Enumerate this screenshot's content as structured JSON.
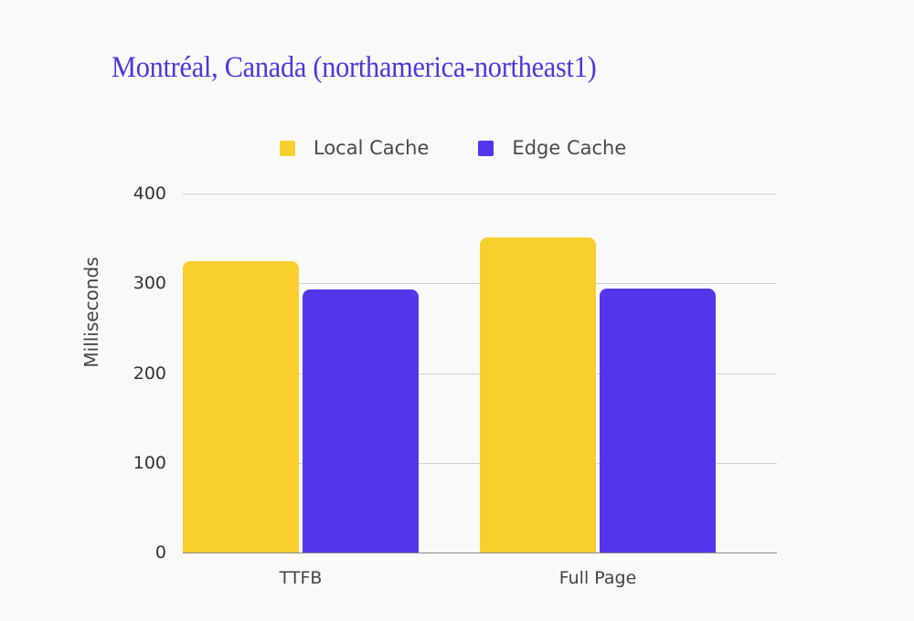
{
  "chart_data": {
    "type": "bar",
    "title": "Montréal, Canada (northamerica-northeast1)",
    "xlabel": "",
    "ylabel": "Milliseconds",
    "categories": [
      "TTFB",
      "Full Page"
    ],
    "series": [
      {
        "name": "Local Cache",
        "color": "#f9cf2f",
        "values": [
          325,
          351
        ]
      },
      {
        "name": "Edge Cache",
        "color": "#5336ea",
        "values": [
          293,
          294
        ]
      }
    ],
    "ylim": [
      0,
      400
    ],
    "yticks": [
      "0",
      "100",
      "200",
      "300",
      "400"
    ],
    "grid": true,
    "legend_position": "top"
  },
  "colors": {
    "title": "#4f35e0",
    "local": "#f9cf2f",
    "edge": "#5336ea"
  }
}
